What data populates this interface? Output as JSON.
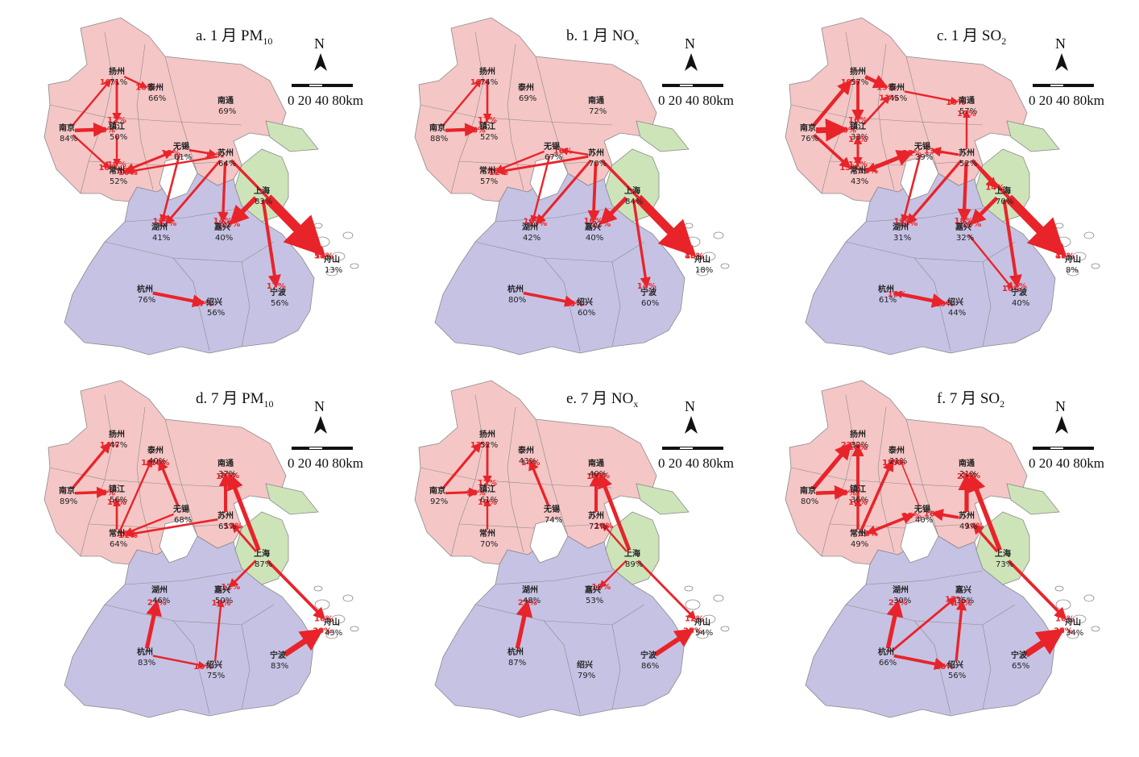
{
  "colors": {
    "jiangsu": "#f5c6c6",
    "zhejiang": "#c6c2e4",
    "shanghai": "#cde4b8",
    "border": "#8a8a8a",
    "arrow": "#e8242a",
    "island": "#ffffff"
  },
  "compass_label": "N",
  "scale_label": "0 20 40  80km",
  "panels": [
    {
      "id": "a",
      "title_pre": "a. 1 月 PM",
      "title_sub": "10",
      "cities": [
        {
          "name": "扬州",
          "pct": "71%"
        },
        {
          "name": "泰州",
          "pct": "66%"
        },
        {
          "name": "南通",
          "pct": "69%"
        },
        {
          "name": "南京",
          "pct": "84%"
        },
        {
          "name": "镇江",
          "pct": "50%"
        },
        {
          "name": "常州",
          "pct": "52%"
        },
        {
          "name": "无锡",
          "pct": "61%"
        },
        {
          "name": "苏州",
          "pct": "64%"
        },
        {
          "name": "上海",
          "pct": "83%"
        },
        {
          "name": "湖州",
          "pct": "41%"
        },
        {
          "name": "嘉兴",
          "pct": "40%"
        },
        {
          "name": "杭州",
          "pct": "76%"
        },
        {
          "name": "绍兴",
          "pct": "56%"
        },
        {
          "name": "宁波",
          "pct": "56%"
        },
        {
          "name": "舟山",
          "pct": "13%"
        }
      ],
      "arrows": [
        {
          "from": "南京",
          "to": "扬州",
          "label": "10%"
        },
        {
          "from": "扬州",
          "to": "泰州",
          "label": "10%"
        },
        {
          "from": "扬州",
          "to": "镇江",
          "label": "12%"
        },
        {
          "from": "南京",
          "to": "镇江",
          "label": "19%"
        },
        {
          "from": "南京",
          "to": "常州",
          "label": "10%"
        },
        {
          "from": "镇江",
          "to": "常州",
          "label": "10%"
        },
        {
          "from": "常州",
          "to": "无锡",
          "label": "12%"
        },
        {
          "from": "无锡",
          "to": "常州",
          "label": "12%"
        },
        {
          "from": "无锡",
          "to": "苏州",
          "label": "11%"
        },
        {
          "from": "苏州",
          "to": "常州",
          "label": "10%"
        },
        {
          "from": "无锡",
          "to": "湖州",
          "label": "11%"
        },
        {
          "from": "苏州",
          "to": "湖州",
          "label": "12%"
        },
        {
          "from": "苏州",
          "to": "嘉兴",
          "label": "14%"
        },
        {
          "from": "上海",
          "to": "嘉兴",
          "label": "25%"
        },
        {
          "from": "上海",
          "to": "舟山",
          "label": "51%"
        },
        {
          "from": "苏州",
          "to": "舟山",
          "label": "14%"
        },
        {
          "from": "上海",
          "to": "宁波",
          "label": "17%"
        },
        {
          "from": "杭州",
          "to": "绍兴",
          "label": "17%"
        }
      ]
    },
    {
      "id": "b",
      "title_pre": "b. 1 月 NO",
      "title_sub": "x",
      "cities": [
        {
          "name": "扬州",
          "pct": "74%"
        },
        {
          "name": "泰州",
          "pct": "69%"
        },
        {
          "name": "南通",
          "pct": "72%"
        },
        {
          "name": "南京",
          "pct": "88%"
        },
        {
          "name": "镇江",
          "pct": "52%"
        },
        {
          "name": "常州",
          "pct": "57%"
        },
        {
          "name": "无锡",
          "pct": "67%"
        },
        {
          "name": "苏州",
          "pct": "70%"
        },
        {
          "name": "上海",
          "pct": "84%"
        },
        {
          "name": "湖州",
          "pct": "42%"
        },
        {
          "name": "嘉兴",
          "pct": "40%"
        },
        {
          "name": "杭州",
          "pct": "80%"
        },
        {
          "name": "绍兴",
          "pct": "60%"
        },
        {
          "name": "宁波",
          "pct": "60%"
        },
        {
          "name": "舟山",
          "pct": "18%"
        }
      ],
      "arrows": [
        {
          "from": "南京",
          "to": "扬州",
          "label": "10%"
        },
        {
          "from": "扬州",
          "to": "镇江",
          "label": "11%"
        },
        {
          "from": "南京",
          "to": "镇江",
          "label": "18%"
        },
        {
          "from": "无锡",
          "to": "常州",
          "label": "10%"
        },
        {
          "from": "苏州",
          "to": "常州",
          "label": "12%"
        },
        {
          "from": "苏州",
          "to": "无锡",
          "label": "10%"
        },
        {
          "from": "无锡",
          "to": "湖州",
          "label": "10%"
        },
        {
          "from": "苏州",
          "to": "湖州",
          "label": "13%"
        },
        {
          "from": "苏州",
          "to": "嘉兴",
          "label": "16%"
        },
        {
          "from": "上海",
          "to": "嘉兴",
          "label": "22%"
        },
        {
          "from": "上海",
          "to": "舟山",
          "label": "46%"
        },
        {
          "from": "苏州",
          "to": "舟山",
          "label": "15%"
        },
        {
          "from": "上海",
          "to": "宁波",
          "label": "14%"
        },
        {
          "from": "杭州",
          "to": "绍兴",
          "label": "15%"
        }
      ]
    },
    {
      "id": "c",
      "title_pre": "c. 1 月 SO",
      "title_sub": "2",
      "cities": [
        {
          "name": "扬州",
          "pct": "57%"
        },
        {
          "name": "泰州",
          "pct": "45%"
        },
        {
          "name": "南通",
          "pct": "57%"
        },
        {
          "name": "南京",
          "pct": "76%"
        },
        {
          "name": "镇江",
          "pct": "33%"
        },
        {
          "name": "常州",
          "pct": "43%"
        },
        {
          "name": "无锡",
          "pct": "39%"
        },
        {
          "name": "苏州",
          "pct": "52%"
        },
        {
          "name": "上海",
          "pct": "70%"
        },
        {
          "name": "湖州",
          "pct": "31%"
        },
        {
          "name": "嘉兴",
          "pct": "32%"
        },
        {
          "name": "杭州",
          "pct": "61%"
        },
        {
          "name": "绍兴",
          "pct": "44%"
        },
        {
          "name": "宁波",
          "pct": "40%"
        },
        {
          "name": "舟山",
          "pct": "8%"
        }
      ],
      "arrows": [
        {
          "from": "南京",
          "to": "扬州",
          "label": "19%"
        },
        {
          "from": "扬州",
          "to": "泰州",
          "label": "19%"
        },
        {
          "from": "扬州",
          "to": "镇江",
          "label": "16%"
        },
        {
          "from": "南京",
          "to": "镇江",
          "label": "30%"
        },
        {
          "from": "泰州",
          "to": "南通",
          "label": "10%"
        },
        {
          "from": "镇江",
          "to": "泰州",
          "label": "11%"
        },
        {
          "from": "南京",
          "to": "常州",
          "label": "15%"
        },
        {
          "from": "镇江",
          "to": "常州",
          "label": "12%"
        },
        {
          "from": "常州",
          "to": "无锡",
          "label": "22%"
        },
        {
          "from": "无锡",
          "to": "常州",
          "label": "13%"
        },
        {
          "from": "苏州",
          "to": "无锡",
          "label": "13%"
        },
        {
          "from": "苏州",
          "to": "南通",
          "label": "10%"
        },
        {
          "from": "无锡",
          "to": "湖州",
          "label": "11%"
        },
        {
          "from": "苏州",
          "to": "湖州",
          "label": "14%"
        },
        {
          "from": "苏州",
          "to": "嘉兴",
          "label": "18%"
        },
        {
          "from": "上海",
          "to": "嘉兴",
          "label": "20%"
        },
        {
          "from": "苏州",
          "to": "上海",
          "label": "14%"
        },
        {
          "from": "上海",
          "to": "舟山",
          "label": "48%"
        },
        {
          "from": "苏州",
          "to": "舟山",
          "label": "17%"
        },
        {
          "from": "上海",
          "to": "宁波",
          "label": "17%"
        },
        {
          "from": "嘉兴",
          "to": "宁波",
          "label": "10%"
        },
        {
          "from": "杭州",
          "to": "绍兴",
          "label": "19%"
        },
        {
          "from": "绍兴",
          "to": "杭州",
          "label": "10%"
        },
        {
          "from": "常州",
          "to": "镇江",
          "label": "11%"
        }
      ]
    },
    {
      "id": "d",
      "title_pre": "d. 7 月 PM",
      "title_sub": "10",
      "cities": [
        {
          "name": "扬州",
          "pct": "47%"
        },
        {
          "name": "泰州",
          "pct": "40%"
        },
        {
          "name": "南通",
          "pct": "37%"
        },
        {
          "name": "南京",
          "pct": "89%"
        },
        {
          "name": "镇江",
          "pct": "56%"
        },
        {
          "name": "常州",
          "pct": "64%"
        },
        {
          "name": "无锡",
          "pct": "68%"
        },
        {
          "name": "苏州",
          "pct": "65%"
        },
        {
          "name": "上海",
          "pct": "87%"
        },
        {
          "name": "湖州",
          "pct": "46%"
        },
        {
          "name": "嘉兴",
          "pct": "50%"
        },
        {
          "name": "杭州",
          "pct": "83%"
        },
        {
          "name": "绍兴",
          "pct": "75%"
        },
        {
          "name": "宁波",
          "pct": "83%"
        },
        {
          "name": "舟山",
          "pct": "43%"
        }
      ],
      "arrows": [
        {
          "from": "南京",
          "to": "扬州",
          "label": "14%"
        },
        {
          "from": "南京",
          "to": "镇江",
          "label": "15%"
        },
        {
          "from": "常州",
          "to": "镇江",
          "label": "10%"
        },
        {
          "from": "常州",
          "to": "泰州",
          "label": "10%"
        },
        {
          "from": "无锡",
          "to": "泰州",
          "label": "14%"
        },
        {
          "from": "苏州",
          "to": "南通",
          "label": "17%"
        },
        {
          "from": "上海",
          "to": "南通",
          "label": "22%"
        },
        {
          "from": "无锡",
          "to": "常州",
          "label": "10%"
        },
        {
          "from": "苏州",
          "to": "常州",
          "label": "11%"
        },
        {
          "from": "上海",
          "to": "苏州",
          "label": "12%"
        },
        {
          "from": "上海",
          "to": "嘉兴",
          "label": "12%"
        },
        {
          "from": "上海",
          "to": "舟山",
          "label": "16%"
        },
        {
          "from": "宁波",
          "to": "舟山",
          "label": "30%"
        },
        {
          "from": "杭州",
          "to": "湖州",
          "label": "21%"
        },
        {
          "from": "杭州",
          "to": "绍兴",
          "label": "10%"
        },
        {
          "from": "绍兴",
          "to": "嘉兴",
          "label": "10%"
        },
        {
          "from": "常州",
          "to": "镇江",
          "label": "10%"
        }
      ]
    },
    {
      "id": "e",
      "title_pre": "e. 7 月 NO",
      "title_sub": "x",
      "cities": [
        {
          "name": "扬州",
          "pct": "52%"
        },
        {
          "name": "泰州",
          "pct": "43%"
        },
        {
          "name": "南通",
          "pct": "40%"
        },
        {
          "name": "南京",
          "pct": "92%"
        },
        {
          "name": "镇江",
          "pct": "61%"
        },
        {
          "name": "常州",
          "pct": "70%"
        },
        {
          "name": "无锡",
          "pct": "74%"
        },
        {
          "name": "苏州",
          "pct": "72%"
        },
        {
          "name": "上海",
          "pct": "89%"
        },
        {
          "name": "湖州",
          "pct": "48%"
        },
        {
          "name": "嘉兴",
          "pct": "53%"
        },
        {
          "name": "杭州",
          "pct": "87%"
        },
        {
          "name": "绍兴",
          "pct": "79%"
        },
        {
          "name": "宁波",
          "pct": "86%"
        },
        {
          "name": "舟山",
          "pct": "54%"
        }
      ],
      "arrows": [
        {
          "from": "南京",
          "to": "扬州",
          "label": "13%"
        },
        {
          "from": "南京",
          "to": "镇江",
          "label": "13%"
        },
        {
          "from": "扬州",
          "to": "镇江",
          "label": "12%"
        },
        {
          "from": "常州",
          "to": "镇江",
          "label": "10%"
        },
        {
          "from": "无锡",
          "to": "泰州",
          "label": "14%"
        },
        {
          "from": "苏州",
          "to": "南通",
          "label": "17%"
        },
        {
          "from": "上海",
          "to": "南通",
          "label": "20%"
        },
        {
          "from": "上海",
          "to": "苏州",
          "label": "10%"
        },
        {
          "from": "上海",
          "to": "嘉兴",
          "label": "10%"
        },
        {
          "from": "上海",
          "to": "舟山",
          "label": "12%"
        },
        {
          "from": "宁波",
          "to": "舟山",
          "label": "25%"
        },
        {
          "from": "杭州",
          "to": "湖州",
          "label": "22%"
        }
      ]
    },
    {
      "id": "f",
      "title_pre": "f. 7 月 SO",
      "title_sub": "2",
      "cities": [
        {
          "name": "扬州",
          "pct": "32%"
        },
        {
          "name": "泰州",
          "pct": "21%"
        },
        {
          "name": "南通",
          "pct": "21%"
        },
        {
          "name": "南京",
          "pct": "80%"
        },
        {
          "name": "镇江",
          "pct": "36%"
        },
        {
          "name": "常州",
          "pct": "49%"
        },
        {
          "name": "无锡",
          "pct": "40%"
        },
        {
          "name": "苏州",
          "pct": "49%"
        },
        {
          "name": "上海",
          "pct": "73%"
        },
        {
          "name": "湖州",
          "pct": "30%"
        },
        {
          "name": "嘉兴",
          "pct": "35%"
        },
        {
          "name": "杭州",
          "pct": "66%"
        },
        {
          "name": "绍兴",
          "pct": "56%"
        },
        {
          "name": "宁波",
          "pct": "65%"
        },
        {
          "name": "舟山",
          "pct": "34%"
        }
      ],
      "arrows": [
        {
          "from": "南京",
          "to": "扬州",
          "label": "22%"
        },
        {
          "from": "南京",
          "to": "镇江",
          "label": "19%"
        },
        {
          "from": "镇江",
          "to": "扬州",
          "label": "16%"
        },
        {
          "from": "常州",
          "to": "扬州",
          "label": "14%"
        },
        {
          "from": "常州",
          "to": "泰州",
          "label": "12%"
        },
        {
          "from": "常州",
          "to": "泰州",
          "label": "15%"
        },
        {
          "from": "无锡",
          "to": "泰州",
          "label": "6%"
        },
        {
          "from": "苏州",
          "to": "南通",
          "label": "22%"
        },
        {
          "from": "上海",
          "to": "南通",
          "label": "24%"
        },
        {
          "from": "常州",
          "to": "无锡",
          "label": "15%"
        },
        {
          "from": "苏州",
          "to": "无锡",
          "label": "16%"
        },
        {
          "from": "上海",
          "to": "苏州",
          "label": "14%"
        },
        {
          "from": "常州",
          "to": "镇江",
          "label": "10%"
        },
        {
          "from": "无锡",
          "to": "常州",
          "label": "13%"
        },
        {
          "from": "杭州",
          "to": "湖州",
          "label": "22%"
        },
        {
          "from": "杭州",
          "to": "嘉兴",
          "label": "12%"
        },
        {
          "from": "绍兴",
          "to": "嘉兴",
          "label": "14%"
        },
        {
          "from": "杭州",
          "to": "绍兴",
          "label": "16%"
        },
        {
          "from": "上海",
          "to": "舟山",
          "label": "16%"
        },
        {
          "from": "宁波",
          "to": "舟山",
          "label": "35%"
        }
      ]
    }
  ]
}
